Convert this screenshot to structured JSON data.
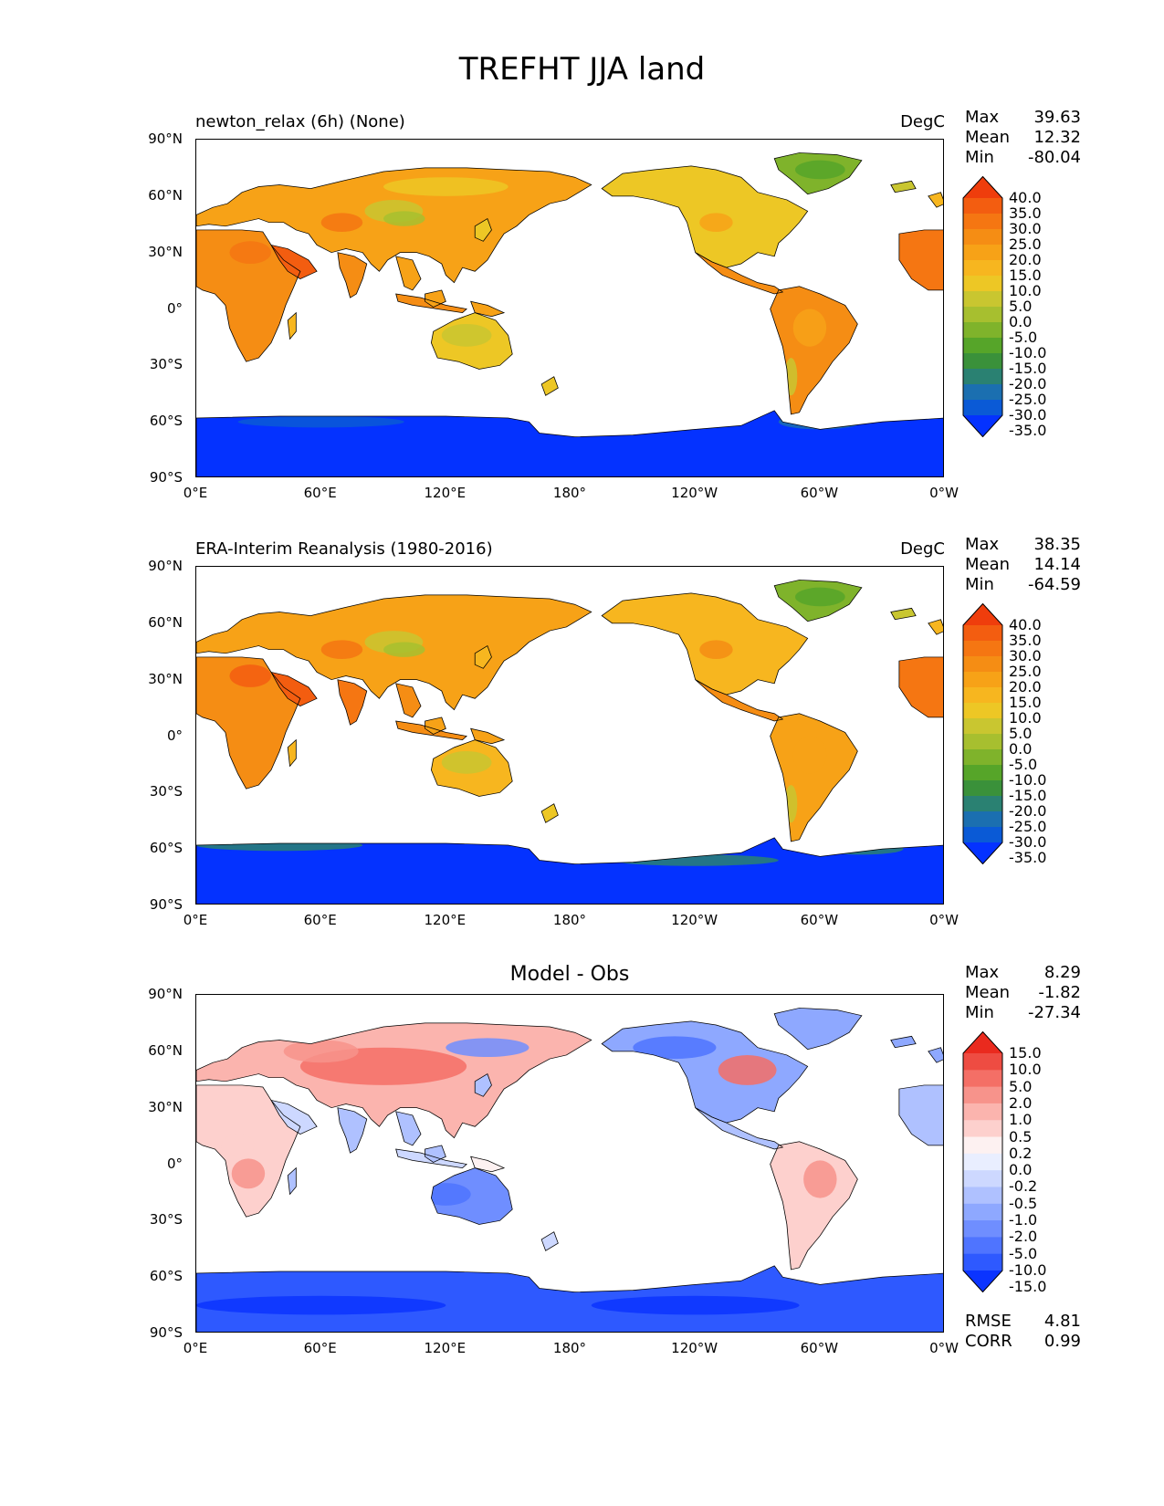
{
  "title": "TREFHT JJA land",
  "colors": {
    "ocean": "#ffffff",
    "coast": "#000000",
    "temp_scale": [
      "#0432ff",
      "#0a5ad6",
      "#1b6fb0",
      "#2a8172",
      "#3a913a",
      "#56a529",
      "#7fb32b",
      "#a7bf2f",
      "#c9c630",
      "#edc725",
      "#f7b61f",
      "#f7a217",
      "#f58d14",
      "#f57612",
      "#f35d10",
      "#ef3d0c"
    ],
    "diff_scale": [
      "#0b34ff",
      "#2e59ff",
      "#4f74ff",
      "#6f8eff",
      "#8ea8ff",
      "#afc1ff",
      "#cdd8ff",
      "#e9eeff",
      "#fdf1f1",
      "#fdd0cd",
      "#fbb4ae",
      "#f7938b",
      "#f46f66",
      "#ee4c42",
      "#ea2a1e"
    ]
  },
  "lat_ticks": [
    "90°N",
    "60°N",
    "30°N",
    "0°",
    "30°S",
    "60°S",
    "90°S"
  ],
  "lon_ticks": [
    "0°E",
    "60°E",
    "120°E",
    "180°",
    "120°W",
    "60°W",
    "0°W"
  ],
  "panels": [
    {
      "title": "newton_relax (6h) (None)",
      "units": "DegC",
      "stats": {
        "max_label": "Max",
        "max": "39.63",
        "mean_label": "Mean",
        "mean": "12.32",
        "min_label": "Min",
        "min": "-80.04"
      },
      "colorbar_ticks": [
        "40.0",
        "35.0",
        "30.0",
        "25.0",
        "20.0",
        "15.0",
        "10.0",
        "5.0",
        "0.0",
        "-5.0",
        "-10.0",
        "-15.0",
        "-20.0",
        "-25.0",
        "-30.0",
        "-35.0"
      ]
    },
    {
      "title": "ERA-Interim Reanalysis (1980-2016)",
      "units": "DegC",
      "stats": {
        "max_label": "Max",
        "max": "38.35",
        "mean_label": "Mean",
        "mean": "14.14",
        "min_label": "Min",
        "min": "-64.59"
      },
      "colorbar_ticks": [
        "40.0",
        "35.0",
        "30.0",
        "25.0",
        "20.0",
        "15.0",
        "10.0",
        "5.0",
        "0.0",
        "-5.0",
        "-10.0",
        "-15.0",
        "-20.0",
        "-25.0",
        "-30.0",
        "-35.0"
      ]
    },
    {
      "title": "Model - Obs",
      "units": "",
      "stats": {
        "max_label": "Max",
        "max": "8.29",
        "mean_label": "Mean",
        "mean": "-1.82",
        "min_label": "Min",
        "min": "-27.34"
      },
      "colorbar_ticks": [
        "15.0",
        "10.0",
        "5.0",
        "2.0",
        "1.0",
        "0.5",
        "0.2",
        "0.0",
        "-0.2",
        "-0.5",
        "-1.0",
        "-2.0",
        "-5.0",
        "-10.0",
        "-15.0"
      ],
      "metrics": {
        "rmse_label": "RMSE",
        "rmse": "4.81",
        "corr_label": "CORR",
        "corr": "0.99"
      }
    }
  ]
}
